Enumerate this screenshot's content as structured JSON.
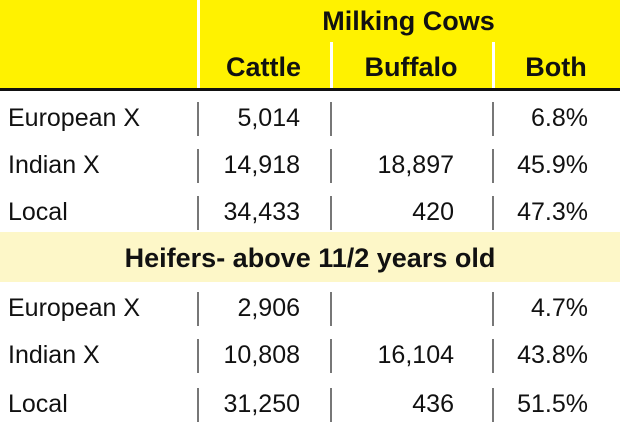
{
  "table": {
    "title": "Milking Cows",
    "headers": [
      "Cattle",
      "Buffalo",
      "Both"
    ],
    "sections": [
      {
        "rows": [
          [
            "European X",
            "5,014",
            null,
            "6.8%"
          ],
          [
            "Indian X",
            "14,918",
            "18,897",
            "45.9%"
          ],
          [
            "Local",
            "34,433",
            "420",
            "47.3%"
          ]
        ]
      },
      {
        "title": "Heifers- above 11/2 years old",
        "rows": [
          [
            "European X",
            "2,906",
            null,
            "4.7%"
          ],
          [
            "Indian X",
            "10,808",
            "16,104",
            "43.8%"
          ],
          [
            "Local",
            "31,250",
            "436",
            "51.5%"
          ]
        ]
      }
    ]
  }
}
